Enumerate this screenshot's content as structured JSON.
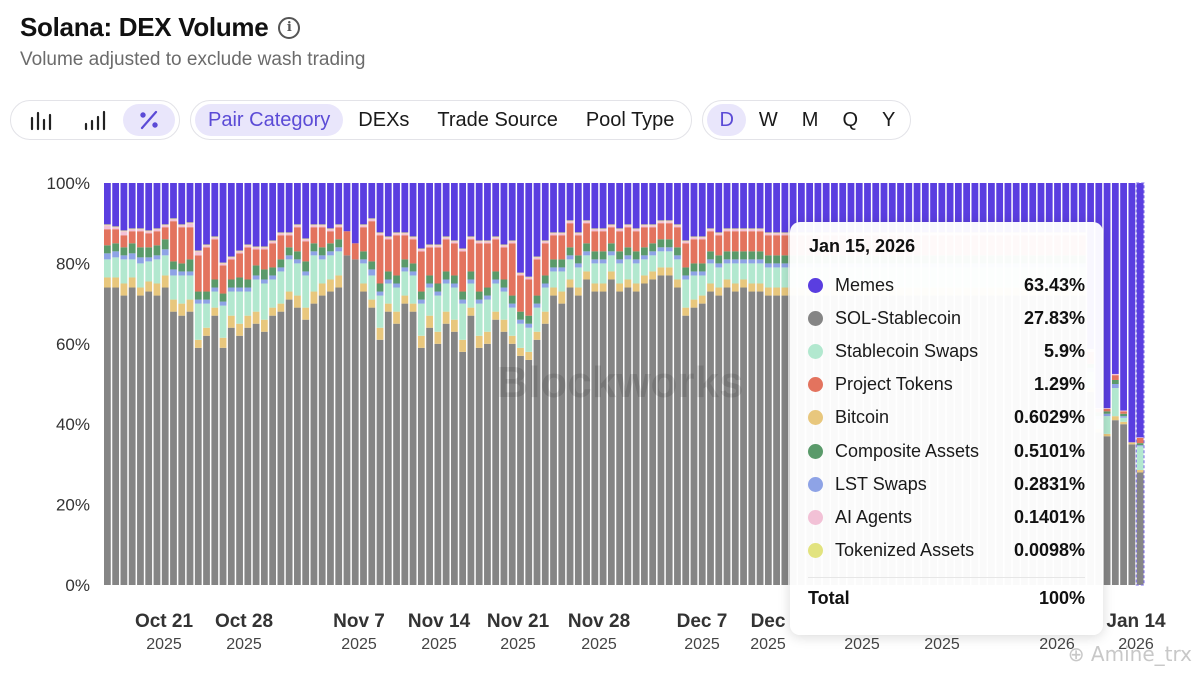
{
  "header": {
    "title": "Solana: DEX Volume",
    "subtitle": "Volume adjusted to exclude wash trading"
  },
  "toolbar": {
    "chart_types": [
      {
        "name": "bar-chart",
        "icon": "bar-chart-icon",
        "active": false
      },
      {
        "name": "stacked-bar-chart",
        "icon": "stacked-bar-icon",
        "active": false
      },
      {
        "name": "percent-chart",
        "icon": "percent-icon",
        "active": true
      }
    ],
    "breakdowns": [
      {
        "label": "Pair Category",
        "active": true
      },
      {
        "label": "DEXs",
        "active": false
      },
      {
        "label": "Trade Source",
        "active": false
      },
      {
        "label": "Pool Type",
        "active": false
      }
    ],
    "intervals": [
      {
        "label": "D",
        "active": true
      },
      {
        "label": "W",
        "active": false
      },
      {
        "label": "M",
        "active": false
      },
      {
        "label": "Q",
        "active": false
      },
      {
        "label": "Y",
        "active": false
      }
    ]
  },
  "tooltip": {
    "date": "Jan 15, 2026",
    "rows": [
      {
        "name": "Memes",
        "value": "63.43%",
        "color": "#5a3ee0"
      },
      {
        "name": "SOL-Stablecoin",
        "value": "27.83%",
        "color": "#858585"
      },
      {
        "name": "Stablecoin Swaps",
        "value": "5.9%",
        "color": "#b2e8cf"
      },
      {
        "name": "Project Tokens",
        "value": "1.29%",
        "color": "#e3735e"
      },
      {
        "name": "Bitcoin",
        "value": "0.6029%",
        "color": "#e8c77d"
      },
      {
        "name": "Composite Assets",
        "value": "0.5101%",
        "color": "#5a9a6a"
      },
      {
        "name": "LST Swaps",
        "value": "0.2831%",
        "color": "#8ea3e6"
      },
      {
        "name": "AI Agents",
        "value": "0.1401%",
        "color": "#f2c1d6"
      },
      {
        "name": "Tokenized Assets",
        "value": "0.0098%",
        "color": "#e2e37f"
      }
    ],
    "total_label": "Total",
    "total_value": "100%"
  },
  "watermark": "Blockworks",
  "credit": "Amine_trx",
  "chart_data": {
    "type": "bar",
    "stacked": true,
    "normalized": true,
    "interval": "daily",
    "ylim": [
      0,
      100
    ],
    "yticks": [
      "0%",
      "20%",
      "40%",
      "60%",
      "80%",
      "100%"
    ],
    "xticks": [
      {
        "label": "Oct 21",
        "year": "2025"
      },
      {
        "label": "Oct 28",
        "year": "2025"
      },
      {
        "label": "Nov 7",
        "year": "2025"
      },
      {
        "label": "Nov 14",
        "year": "2025"
      },
      {
        "label": "Nov 21",
        "year": "2025"
      },
      {
        "label": "Nov 28",
        "year": "2025"
      },
      {
        "label": "Dec 7",
        "year": "2025"
      },
      {
        "label": "Dec",
        "year": "2025"
      },
      {
        "label": "",
        "year": "2025"
      },
      {
        "label": "",
        "year": "2025"
      },
      {
        "label": "",
        "year": "2026"
      },
      {
        "label": "Jan 14",
        "year": "2026"
      }
    ],
    "series_order": [
      "SOL-Stablecoin",
      "Bitcoin",
      "Stablecoin Swaps",
      "LST Swaps",
      "Composite Assets",
      "Project Tokens",
      "AI Agents",
      "Tokenized Assets",
      "Memes"
    ],
    "series_colors": {
      "SOL-Stablecoin": "#858585",
      "Bitcoin": "#e8c77d",
      "Stablecoin Swaps": "#b2e8cf",
      "LST Swaps": "#8ea3e6",
      "Composite Assets": "#5a9a6a",
      "Project Tokens": "#e3735e",
      "AI Agents": "#f2c1d6",
      "Tokenized Assets": "#e2e37f",
      "Memes": "#5a3ee0"
    },
    "rows": [
      [
        74,
        2.5,
        4.5,
        1.5,
        2,
        4,
        1,
        0.2
      ],
      [
        74,
        2.5,
        5,
        1.5,
        2,
        3.5,
        0.5,
        0.2
      ],
      [
        72,
        3,
        6,
        1,
        2,
        3,
        1,
        0.2
      ],
      [
        74,
        2.5,
        4.5,
        1.5,
        2.5,
        3,
        0.5,
        0.2
      ],
      [
        72,
        2,
        6,
        1.5,
        2.5,
        4,
        0.5,
        0.2
      ],
      [
        73,
        2.5,
        5,
        1,
        2.5,
        3.5,
        0.5,
        0.2
      ],
      [
        72,
        3,
        6,
        1,
        2.5,
        3.5,
        0.5,
        0.2
      ],
      [
        74,
        3,
        5,
        1.5,
        2.5,
        3,
        0.5,
        0.2
      ],
      [
        68,
        3,
        6,
        1.5,
        2,
        10,
        0.5,
        0.2
      ],
      [
        67,
        3,
        7,
        1,
        2,
        9,
        0.5,
        0.2
      ],
      [
        68,
        3,
        6,
        1,
        3,
        8,
        1,
        0.2
      ],
      [
        59,
        2,
        9,
        1,
        2,
        9,
        1,
        0.2
      ],
      [
        62,
        2,
        6,
        1,
        2,
        11,
        0.5,
        0.2
      ],
      [
        67,
        2,
        4,
        1,
        2,
        10,
        0.5,
        0.2
      ],
      [
        59,
        2.5,
        8,
        1,
        2,
        7,
        0.5,
        0.2
      ],
      [
        64,
        3,
        6,
        1,
        2,
        5,
        0.5,
        0.2
      ],
      [
        62,
        3,
        8,
        1,
        2.5,
        6,
        0.5,
        0.2
      ],
      [
        64,
        3,
        6,
        1,
        2,
        8,
        0.5,
        0.2
      ],
      [
        65,
        3,
        8,
        1,
        2.5,
        4,
        0.5,
        0.2
      ],
      [
        63,
        3,
        9,
        1,
        2.5,
        5,
        0.5,
        0.2
      ],
      [
        67,
        2,
        7,
        1,
        2,
        6,
        0.5,
        0.2
      ],
      [
        68,
        2,
        8,
        1,
        2,
        6,
        0.5,
        0.2
      ],
      [
        71,
        2,
        8,
        1,
        2,
        3,
        0.5,
        0.2
      ],
      [
        69,
        3,
        8,
        1,
        2,
        6,
        0.5,
        0.2
      ],
      [
        66,
        3,
        8,
        1,
        2.5,
        5,
        0.5,
        0.2
      ],
      [
        70,
        3,
        9,
        1,
        2,
        4,
        0.5,
        0.2
      ],
      [
        72,
        3,
        6,
        1,
        2,
        5,
        0.5,
        0.2
      ],
      [
        73,
        3,
        6,
        1,
        2,
        3,
        0.5,
        0.2
      ],
      [
        74,
        3,
        6,
        1,
        2,
        3,
        0.5,
        0.2
      ],
      [
        82,
        0,
        0,
        0,
        0,
        6,
        0,
        0
      ],
      [
        81,
        0,
        0,
        0,
        0,
        4,
        0,
        0
      ],
      [
        73,
        2,
        5,
        1,
        2,
        6,
        0.5,
        0.2
      ],
      [
        69,
        2,
        6,
        1.5,
        2,
        10,
        0.5,
        0.2
      ],
      [
        61,
        3,
        8,
        1,
        2,
        12,
        0.5,
        0.2
      ],
      [
        68,
        2,
        5,
        1,
        2,
        8,
        0.5,
        0.2
      ],
      [
        65,
        3,
        6,
        1,
        2,
        10,
        0.5,
        0.2
      ],
      [
        70,
        2,
        6,
        1,
        2,
        6,
        0.5,
        0.2
      ],
      [
        68,
        2,
        7,
        1,
        2,
        6,
        0.5,
        0.2
      ],
      [
        59,
        3,
        8,
        1,
        2,
        10,
        0.5,
        0.2
      ],
      [
        64,
        3,
        7,
        1,
        2,
        7,
        0.5,
        0.2
      ],
      [
        60,
        3,
        9,
        1,
        2,
        9,
        0.5,
        0.2
      ],
      [
        65,
        3,
        7,
        1,
        2,
        8,
        0.5,
        0.2
      ],
      [
        63,
        3,
        8,
        1,
        2,
        8,
        0.5,
        0.2
      ],
      [
        58,
        3,
        9,
        1,
        2,
        10,
        0.5,
        0.2
      ],
      [
        67,
        2,
        6,
        1,
        2,
        8,
        0.5,
        0.2
      ],
      [
        59,
        3,
        8,
        1,
        2,
        12,
        0.5,
        0.2
      ],
      [
        60,
        3,
        8,
        1,
        2,
        11,
        0.5,
        0.2
      ],
      [
        66,
        2,
        7,
        1,
        2,
        8,
        0.5,
        0.2
      ],
      [
        63,
        3,
        7,
        1,
        2,
        8,
        0.5,
        0.2
      ],
      [
        60,
        2,
        7,
        1,
        2,
        13,
        0.5,
        0.2
      ],
      [
        57,
        2,
        6,
        1,
        2,
        9,
        0.5,
        0.2
      ],
      [
        56,
        2,
        6,
        1,
        2,
        9,
        0.5,
        0.2
      ],
      [
        61,
        2,
        6,
        1,
        2,
        9,
        0.5,
        0.2
      ],
      [
        65,
        3,
        6,
        1,
        2,
        8,
        0.5,
        0.2
      ],
      [
        72,
        2,
        4,
        1,
        2,
        6,
        0.5,
        0.2
      ],
      [
        70,
        3,
        5,
        1,
        2,
        6,
        0.5,
        0.2
      ],
      [
        74,
        2,
        5,
        1,
        2,
        6,
        0.5,
        0.2
      ],
      [
        72,
        2,
        5,
        1,
        2,
        5,
        0.5,
        0.2
      ],
      [
        76,
        2,
        4,
        1,
        2,
        5,
        0.5,
        0.2
      ],
      [
        73,
        2,
        5,
        1,
        2,
        5,
        0.5,
        0.2
      ],
      [
        73,
        2,
        5,
        1,
        2,
        5,
        0.5,
        0.2
      ],
      [
        76,
        2,
        4,
        1,
        2,
        4,
        0.5,
        0.2
      ],
      [
        73,
        2,
        5,
        1,
        2,
        5,
        0.5,
        0.2
      ],
      [
        74,
        2,
        5,
        1,
        2,
        5,
        0.5,
        0.2
      ],
      [
        73,
        2,
        5,
        1,
        2,
        5,
        0.5,
        0.2
      ],
      [
        75,
        2,
        4,
        1,
        2,
        5,
        0.5,
        0.2
      ],
      [
        76,
        2,
        4,
        1,
        2,
        4,
        0.5,
        0.2
      ],
      [
        77,
        2,
        4,
        1,
        2,
        4,
        0.5,
        0.2
      ],
      [
        77,
        2,
        4,
        1,
        2,
        4,
        0.5,
        0.2
      ],
      [
        74,
        2,
        5,
        1,
        2,
        5,
        0.5,
        0.2
      ],
      [
        67,
        2,
        7,
        1,
        2,
        6,
        0.5,
        0.2
      ],
      [
        69,
        2,
        6,
        1,
        2,
        6,
        0.5,
        0.2
      ],
      [
        70,
        2,
        5,
        1,
        2,
        6,
        0.5,
        0.2
      ],
      [
        73,
        2,
        5,
        1,
        2,
        5,
        0.5,
        0.2
      ],
      [
        72,
        2,
        5,
        1,
        2,
        5,
        0.5,
        0.2
      ],
      [
        74,
        2,
        4,
        1,
        2,
        5,
        0.5,
        0.2
      ],
      [
        73,
        2,
        5,
        1,
        2,
        5,
        0.5,
        0.2
      ],
      [
        74,
        2,
        4,
        1,
        2,
        5,
        0.5,
        0.2
      ],
      [
        73,
        2,
        5,
        1,
        2,
        5,
        0.5,
        0.2
      ],
      [
        73,
        2,
        5,
        1,
        2,
        5,
        0.5,
        0.2
      ],
      [
        72,
        2,
        5,
        1,
        2,
        5,
        0.5,
        0.2
      ],
      [
        72,
        2,
        5,
        1,
        2,
        5,
        0.5,
        0.2
      ],
      [
        72,
        2,
        5,
        1,
        2,
        5,
        0.5,
        0.2
      ],
      [
        72,
        2,
        5,
        1,
        2,
        5,
        0.5,
        0.2
      ],
      [
        72,
        2,
        5,
        1,
        2,
        5,
        0.5,
        0.2
      ],
      [
        72,
        2,
        5,
        1,
        2,
        5,
        0.5,
        0.2
      ],
      [
        72,
        2,
        5,
        1,
        2,
        5,
        0.5,
        0.2
      ],
      [
        72,
        2,
        5,
        1,
        2,
        5,
        0.5,
        0.2
      ],
      [
        72,
        2,
        5,
        1,
        2,
        5,
        0.5,
        0.2
      ],
      [
        72,
        2,
        5,
        1,
        2,
        5,
        0.5,
        0.2
      ],
      [
        72,
        2,
        5,
        1,
        2,
        5,
        0.5,
        0.2
      ],
      [
        72,
        2,
        5,
        1,
        2,
        5,
        0.5,
        0.2
      ],
      [
        72,
        2,
        5,
        1,
        2,
        5,
        0.5,
        0.2
      ],
      [
        72,
        2,
        5,
        1,
        2,
        5,
        0.5,
        0.2
      ],
      [
        72,
        2,
        5,
        1,
        2,
        5,
        0.5,
        0.2
      ],
      [
        72,
        2,
        5,
        1,
        2,
        5,
        0.5,
        0.2
      ],
      [
        72,
        2,
        5,
        1,
        2,
        5,
        0.5,
        0.2
      ],
      [
        72,
        2,
        5,
        1,
        2,
        5,
        0.5,
        0.2
      ],
      [
        72,
        2,
        5,
        1,
        2,
        5,
        0.5,
        0.2
      ],
      [
        72,
        2,
        5,
        1,
        2,
        5,
        0.5,
        0.2
      ],
      [
        72,
        2,
        5,
        1,
        2,
        5,
        0.5,
        0.2
      ],
      [
        72,
        2,
        5,
        1,
        2,
        5,
        0.5,
        0.2
      ],
      [
        72,
        2,
        5,
        1,
        2,
        5,
        0.5,
        0.2
      ],
      [
        72,
        2,
        5,
        1,
        2,
        5,
        0.5,
        0.2
      ],
      [
        72,
        2,
        5,
        1,
        2,
        5,
        0.5,
        0.2
      ],
      [
        72,
        2,
        5,
        1,
        2,
        5,
        0.5,
        0.2
      ],
      [
        72,
        2,
        5,
        1,
        2,
        5,
        0.5,
        0.2
      ],
      [
        72,
        2,
        5,
        1,
        2,
        5,
        0.5,
        0.2
      ],
      [
        72,
        2,
        5,
        1,
        2,
        5,
        0.5,
        0.2
      ],
      [
        72,
        2,
        5,
        1,
        2,
        5,
        0.5,
        0.2
      ],
      [
        72,
        2,
        5,
        1,
        2,
        5,
        0.5,
        0.2
      ],
      [
        72,
        2,
        5,
        1,
        2,
        5,
        0.5,
        0.2
      ],
      [
        72,
        2,
        5,
        1,
        2,
        5,
        0.5,
        0.2
      ],
      [
        72,
        2,
        5,
        1,
        2,
        5,
        0.5,
        0.2
      ],
      [
        72,
        2,
        5,
        1,
        2,
        5,
        0.5,
        0.2
      ],
      [
        72,
        2,
        5,
        1,
        2,
        5,
        0.5,
        0.2
      ],
      [
        72,
        2,
        5,
        1,
        2,
        5,
        0.5,
        0.2
      ],
      [
        72,
        2,
        5,
        1,
        2,
        5,
        0.5,
        0.2
      ],
      [
        72,
        2,
        5,
        1,
        2,
        5,
        0.5,
        0.2
      ],
      [
        48,
        1,
        4,
        1,
        1,
        3,
        0.5,
        0.2
      ],
      [
        38,
        0.8,
        2.4,
        0.8,
        1,
        0.8,
        0.2,
        0
      ],
      [
        37,
        0.6,
        4.4,
        0.6,
        0.6,
        0.6,
        0.2,
        0
      ],
      [
        41,
        1,
        7,
        1,
        1,
        1.2,
        0.3,
        0
      ],
      [
        40,
        0.6,
        1,
        0.4,
        0.6,
        0.6,
        0.2,
        0
      ],
      [
        35,
        0.5,
        0,
        0,
        0,
        0,
        0,
        0
      ],
      [
        28,
        0.6,
        5.9,
        0.28,
        0.51,
        1.29,
        0.14,
        0.01
      ]
    ]
  }
}
